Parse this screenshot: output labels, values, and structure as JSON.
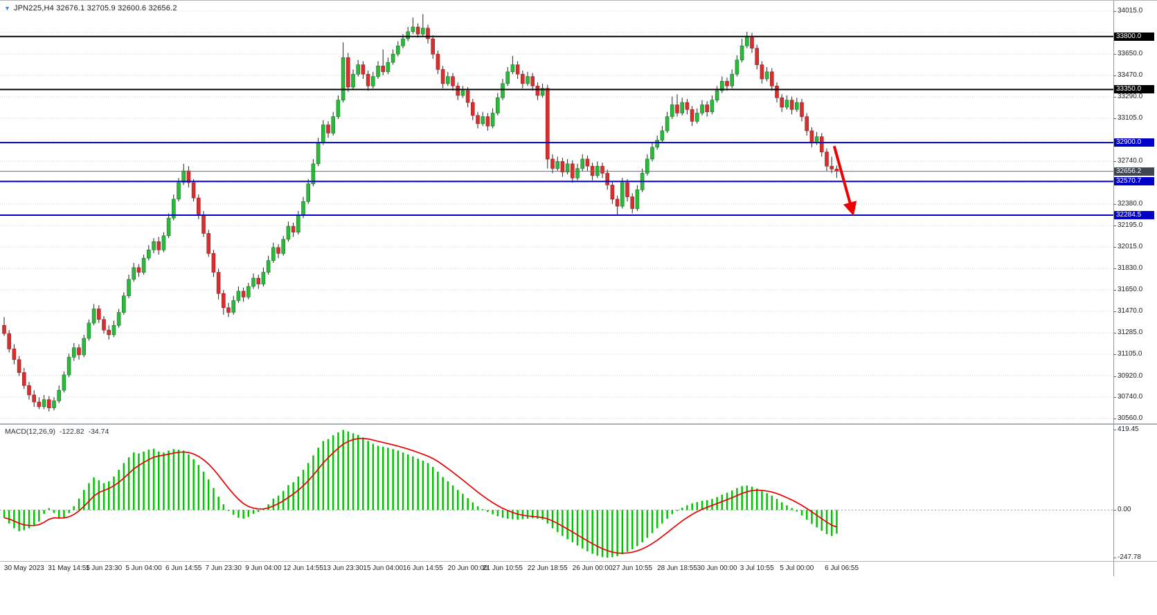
{
  "window": {
    "chart_title": "JPN225,H4 32676.1 32705.9 32600.6 32656.2",
    "expander_glyph": "▼"
  },
  "chart_data": {
    "type": "candlestick",
    "symbol": "JPN225",
    "timeframe": "H4",
    "last_ohlc": {
      "open": 32676.1,
      "high": 32705.9,
      "low": 32600.6,
      "close": 32656.2
    },
    "price_axis": {
      "min": 30560.0,
      "max": 34015.0,
      "visible_labels": [
        "34015.0",
        "33650.0",
        "33470.0",
        "33290.0",
        "33105.0",
        "32740.0",
        "32380.0",
        "32195.0",
        "32015.0",
        "31830.0",
        "31650.0",
        "31470.0",
        "31285.0",
        "31105.0",
        "30920.0",
        "30740.0",
        "30560.0"
      ]
    },
    "horizontal_lines": [
      {
        "price": 33800.0,
        "label": "33800.0",
        "color": "#000000"
      },
      {
        "price": 33350.0,
        "label": "33350.0",
        "color": "#000000"
      },
      {
        "price": 32900.0,
        "label": "32900.0",
        "color": "#0000c8"
      },
      {
        "price": 32570.7,
        "label": "32570.7",
        "color": "#0000c8"
      },
      {
        "price": 32284.5,
        "label": "32284.5",
        "color": "#0000c8"
      }
    ],
    "current_price": {
      "value": 32656.2,
      "label": "32656.2",
      "line_color": "#5f6e7e",
      "badge_color": "#3f4650"
    },
    "colors": {
      "up": "#2db83d",
      "up_border": "#157a22",
      "down": "#d62f2f",
      "down_border": "#9c1f1f",
      "wick": "#222222",
      "grid": "#d3d3d3",
      "macd_histogram": "#00c400",
      "macd_signal": "#e60000",
      "arrow": "#ee0000",
      "black_line": "#000000",
      "blue_line": "#0000c8"
    },
    "candles": [
      [
        31350,
        31420,
        31260,
        31280
      ],
      [
        31280,
        31310,
        31120,
        31150
      ],
      [
        31150,
        31190,
        31020,
        31060
      ],
      [
        31060,
        31090,
        30920,
        30950
      ],
      [
        30950,
        30990,
        30810,
        30840
      ],
      [
        30840,
        30870,
        30720,
        30760
      ],
      [
        30760,
        30800,
        30660,
        30700
      ],
      [
        30700,
        30740,
        30640,
        30660
      ],
      [
        30660,
        30760,
        30640,
        30720
      ],
      [
        30720,
        30750,
        30620,
        30650
      ],
      [
        30650,
        30740,
        30630,
        30710
      ],
      [
        30710,
        30840,
        30690,
        30800
      ],
      [
        30800,
        30960,
        30780,
        30930
      ],
      [
        30930,
        31110,
        30910,
        31080
      ],
      [
        31080,
        31200,
        31050,
        31160
      ],
      [
        31160,
        31190,
        31060,
        31100
      ],
      [
        31100,
        31270,
        31080,
        31240
      ],
      [
        31240,
        31400,
        31220,
        31370
      ],
      [
        31370,
        31530,
        31350,
        31490
      ],
      [
        31490,
        31520,
        31370,
        31400
      ],
      [
        31400,
        31430,
        31280,
        31310
      ],
      [
        31310,
        31350,
        31230,
        31270
      ],
      [
        31270,
        31390,
        31250,
        31350
      ],
      [
        31350,
        31490,
        31330,
        31460
      ],
      [
        31460,
        31630,
        31440,
        31600
      ],
      [
        31600,
        31780,
        31580,
        31740
      ],
      [
        31740,
        31880,
        31720,
        31840
      ],
      [
        31840,
        31870,
        31760,
        31800
      ],
      [
        31800,
        31950,
        31780,
        31920
      ],
      [
        31920,
        32030,
        31900,
        31990
      ],
      [
        31990,
        32090,
        31960,
        32060
      ],
      [
        32060,
        32100,
        31950,
        31990
      ],
      [
        31990,
        32140,
        31970,
        32110
      ],
      [
        32110,
        32300,
        32090,
        32260
      ],
      [
        32260,
        32460,
        32240,
        32420
      ],
      [
        32420,
        32600,
        32400,
        32560
      ],
      [
        32560,
        32720,
        32540,
        32660
      ],
      [
        32660,
        32700,
        32520,
        32560
      ],
      [
        32560,
        32590,
        32400,
        32430
      ],
      [
        32430,
        32460,
        32250,
        32280
      ],
      [
        32280,
        32320,
        32100,
        32130
      ],
      [
        32130,
        32160,
        31930,
        31960
      ],
      [
        31960,
        31990,
        31760,
        31800
      ],
      [
        31800,
        31830,
        31570,
        31620
      ],
      [
        31620,
        31650,
        31440,
        31500
      ],
      [
        31500,
        31540,
        31420,
        31460
      ],
      [
        31460,
        31600,
        31440,
        31560
      ],
      [
        31560,
        31680,
        31540,
        31640
      ],
      [
        31640,
        31670,
        31550,
        31590
      ],
      [
        31590,
        31710,
        31570,
        31680
      ],
      [
        31680,
        31790,
        31660,
        31750
      ],
      [
        31750,
        31780,
        31660,
        31700
      ],
      [
        31700,
        31840,
        31680,
        31800
      ],
      [
        31800,
        31940,
        31780,
        31900
      ],
      [
        31900,
        32050,
        31880,
        32010
      ],
      [
        32010,
        32040,
        31920,
        31960
      ],
      [
        31960,
        32110,
        31940,
        32080
      ],
      [
        32080,
        32230,
        32060,
        32190
      ],
      [
        32190,
        32220,
        32100,
        32140
      ],
      [
        32140,
        32320,
        32120,
        32280
      ],
      [
        32280,
        32440,
        32260,
        32400
      ],
      [
        32400,
        32590,
        32380,
        32550
      ],
      [
        32550,
        32760,
        32530,
        32720
      ],
      [
        32720,
        32940,
        32700,
        32900
      ],
      [
        32900,
        33090,
        32880,
        33050
      ],
      [
        33050,
        33080,
        32940,
        32980
      ],
      [
        32980,
        33160,
        32960,
        33120
      ],
      [
        33120,
        33300,
        33100,
        33260
      ],
      [
        33260,
        33750,
        33240,
        33620
      ],
      [
        33620,
        33660,
        33330,
        33370
      ],
      [
        33370,
        33520,
        33350,
        33480
      ],
      [
        33480,
        33600,
        33460,
        33560
      ],
      [
        33560,
        33590,
        33440,
        33480
      ],
      [
        33480,
        33510,
        33340,
        33380
      ],
      [
        33380,
        33500,
        33360,
        33460
      ],
      [
        33460,
        33590,
        33440,
        33550
      ],
      [
        33550,
        33690,
        33470,
        33500
      ],
      [
        33500,
        33620,
        33480,
        33580
      ],
      [
        33580,
        33690,
        33560,
        33650
      ],
      [
        33650,
        33760,
        33630,
        33720
      ],
      [
        33720,
        33820,
        33700,
        33780
      ],
      [
        33780,
        33880,
        33760,
        33840
      ],
      [
        33840,
        33960,
        33820,
        33880
      ],
      [
        33880,
        33910,
        33790,
        33820
      ],
      [
        33820,
        33990,
        33800,
        33870
      ],
      [
        33870,
        33900,
        33740,
        33780
      ],
      [
        33780,
        33810,
        33610,
        33650
      ],
      [
        33650,
        33680,
        33480,
        33520
      ],
      [
        33520,
        33550,
        33360,
        33400
      ],
      [
        33400,
        33500,
        33380,
        33460
      ],
      [
        33460,
        33490,
        33340,
        33380
      ],
      [
        33380,
        33410,
        33260,
        33300
      ],
      [
        33300,
        33380,
        33280,
        33340
      ],
      [
        33340,
        33370,
        33200,
        33240
      ],
      [
        33240,
        33270,
        33090,
        33130
      ],
      [
        33130,
        33160,
        33020,
        33060
      ],
      [
        33060,
        33160,
        33040,
        33120
      ],
      [
        33120,
        33150,
        33000,
        33040
      ],
      [
        33040,
        33190,
        33020,
        33150
      ],
      [
        33150,
        33320,
        33130,
        33280
      ],
      [
        33280,
        33440,
        33260,
        33400
      ],
      [
        33400,
        33540,
        33380,
        33500
      ],
      [
        33500,
        33635,
        33480,
        33560
      ],
      [
        33560,
        33590,
        33440,
        33480
      ],
      [
        33480,
        33510,
        33360,
        33400
      ],
      [
        33400,
        33500,
        33380,
        33460
      ],
      [
        33460,
        33490,
        33340,
        33380
      ],
      [
        33380,
        33410,
        33260,
        33300
      ],
      [
        33300,
        33400,
        33280,
        33360
      ],
      [
        33360,
        33390,
        32680,
        32760
      ],
      [
        32760,
        32800,
        32640,
        32680
      ],
      [
        32680,
        32780,
        32660,
        32740
      ],
      [
        32740,
        32770,
        32610,
        32650
      ],
      [
        32650,
        32760,
        32630,
        32720
      ],
      [
        32720,
        32750,
        32560,
        32600
      ],
      [
        32600,
        32720,
        32580,
        32680
      ],
      [
        32680,
        32800,
        32660,
        32760
      ],
      [
        32760,
        32790,
        32660,
        32700
      ],
      [
        32700,
        32730,
        32580,
        32620
      ],
      [
        32620,
        32740,
        32600,
        32700
      ],
      [
        32700,
        32730,
        32600,
        32640
      ],
      [
        32640,
        32670,
        32500,
        32540
      ],
      [
        32540,
        32570,
        32380,
        32420
      ],
      [
        32420,
        32450,
        32290,
        32360
      ],
      [
        32360,
        32600,
        32340,
        32560
      ],
      [
        32560,
        32590,
        32400,
        32440
      ],
      [
        32440,
        32470,
        32300,
        32340
      ],
      [
        32340,
        32540,
        32320,
        32500
      ],
      [
        32500,
        32680,
        32480,
        32640
      ],
      [
        32640,
        32800,
        32620,
        32760
      ],
      [
        32760,
        32900,
        32740,
        32860
      ],
      [
        32860,
        32960,
        32840,
        32920
      ],
      [
        32920,
        33040,
        32900,
        33000
      ],
      [
        33000,
        33160,
        32980,
        33120
      ],
      [
        33120,
        33290,
        33100,
        33220
      ],
      [
        33220,
        33310,
        33120,
        33150
      ],
      [
        33150,
        33280,
        33130,
        33240
      ],
      [
        33240,
        33270,
        33140,
        33180
      ],
      [
        33180,
        33210,
        33040,
        33080
      ],
      [
        33080,
        33190,
        33060,
        33150
      ],
      [
        33150,
        33260,
        33130,
        33220
      ],
      [
        33220,
        33250,
        33120,
        33160
      ],
      [
        33160,
        33300,
        33140,
        33260
      ],
      [
        33260,
        33380,
        33240,
        33340
      ],
      [
        33340,
        33460,
        33320,
        33420
      ],
      [
        33420,
        33450,
        33340,
        33380
      ],
      [
        33380,
        33520,
        33360,
        33480
      ],
      [
        33480,
        33640,
        33460,
        33600
      ],
      [
        33600,
        33780,
        33580,
        33720
      ],
      [
        33720,
        33840,
        33700,
        33790
      ],
      [
        33790,
        33830,
        33660,
        33700
      ],
      [
        33700,
        33730,
        33520,
        33560
      ],
      [
        33560,
        33590,
        33400,
        33440
      ],
      [
        33440,
        33540,
        33420,
        33500
      ],
      [
        33500,
        33530,
        33340,
        33380
      ],
      [
        33380,
        33410,
        33240,
        33280
      ],
      [
        33280,
        33310,
        33160,
        33200
      ],
      [
        33200,
        33300,
        33180,
        33260
      ],
      [
        33260,
        33290,
        33140,
        33180
      ],
      [
        33180,
        33280,
        33160,
        33240
      ],
      [
        33240,
        33270,
        33080,
        33120
      ],
      [
        33120,
        33150,
        32960,
        33000
      ],
      [
        33000,
        33030,
        32860,
        32900
      ],
      [
        32900,
        32990,
        32880,
        32950
      ],
      [
        32950,
        32980,
        32780,
        32820
      ],
      [
        32820,
        32850,
        32660,
        32700
      ],
      [
        32700,
        32780,
        32640,
        32676
      ],
      [
        32676,
        32706,
        32601,
        32656
      ]
    ],
    "time_labels": [
      {
        "text": "30 May 2023",
        "bar": 4
      },
      {
        "text": "31 May 14:55",
        "bar": 13
      },
      {
        "text": "1 Jun 23:30",
        "bar": 20
      },
      {
        "text": "5 Jun 04:00",
        "bar": 28
      },
      {
        "text": "6 Jun 14:55",
        "bar": 36
      },
      {
        "text": "7 Jun 23:30",
        "bar": 44
      },
      {
        "text": "9 Jun 04:00",
        "bar": 52
      },
      {
        "text": "12 Jun 14:55",
        "bar": 60
      },
      {
        "text": "13 Jun 23:30",
        "bar": 68
      },
      {
        "text": "15 Jun 04:00",
        "bar": 76
      },
      {
        "text": "16 Jun 14:55",
        "bar": 84
      },
      {
        "text": "20 Jun 00:00",
        "bar": 93
      },
      {
        "text": "21 Jun 10:55",
        "bar": 100
      },
      {
        "text": "22 Jun 18:55",
        "bar": 109
      },
      {
        "text": "26 Jun 00:00",
        "bar": 118
      },
      {
        "text": "27 Jun 10:55",
        "bar": 126
      },
      {
        "text": "28 Jun 18:55",
        "bar": 135
      },
      {
        "text": "30 Jun 00:00",
        "bar": 143
      },
      {
        "text": "3 Jul 10:55",
        "bar": 151
      },
      {
        "text": "5 Jul 00:00",
        "bar": 159
      },
      {
        "text": "6 Jul 06:55",
        "bar": 168
      }
    ],
    "arrow": {
      "from_bar": 166.5,
      "from_price": 32870,
      "to_bar": 170.2,
      "to_price": 32310
    },
    "macd": {
      "label": "MACD(12,26,9)",
      "main_value": "-122.82",
      "signal_value": "-34.74",
      "axis_labels": [
        "419.45",
        "0.00",
        "-247.78"
      ],
      "ylim": [
        -247.78,
        419.45
      ],
      "histogram": [
        -40,
        -70,
        -95,
        -110,
        -105,
        -95,
        -80,
        -60,
        -20,
        10,
        -15,
        -45,
        -40,
        -15,
        20,
        60,
        105,
        140,
        170,
        155,
        140,
        150,
        175,
        210,
        245,
        275,
        300,
        295,
        305,
        315,
        320,
        305,
        300,
        310,
        318,
        315,
        310,
        290,
        265,
        235,
        200,
        160,
        115,
        70,
        30,
        -5,
        -25,
        -40,
        -45,
        -35,
        -20,
        -10,
        5,
        30,
        60,
        75,
        100,
        130,
        145,
        175,
        210,
        245,
        285,
        325,
        360,
        370,
        390,
        405,
        418,
        410,
        400,
        392,
        378,
        360,
        345,
        335,
        330,
        325,
        318,
        310,
        300,
        290,
        280,
        268,
        258,
        245,
        225,
        200,
        172,
        150,
        128,
        105,
        85,
        62,
        40,
        20,
        5,
        -10,
        -22,
        -32,
        -40,
        -45,
        -48,
        -50,
        -48,
        -45,
        -42,
        -45,
        -50,
        -70,
        -95,
        -115,
        -135,
        -152,
        -168,
        -185,
        -200,
        -215,
        -228,
        -238,
        -245,
        -248,
        -246,
        -240,
        -230,
        -218,
        -205,
        -188,
        -168,
        -145,
        -120,
        -95,
        -70,
        -45,
        -22,
        -5,
        12,
        25,
        35,
        42,
        48,
        52,
        58,
        68,
        80,
        90,
        102,
        115,
        125,
        128,
        122,
        112,
        98,
        88,
        75,
        58,
        40,
        25,
        10,
        -8,
        -28,
        -50,
        -72,
        -90,
        -108,
        -125,
        -135,
        -122.82
      ]
    }
  }
}
